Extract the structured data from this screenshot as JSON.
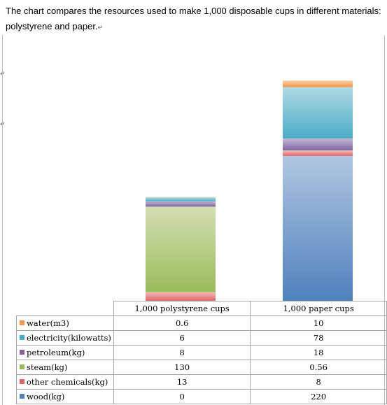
{
  "intro_text": "The chart compares the resources used to make 1,000 disposable cups in different materials: polystyrene and paper.",
  "para_mark": "↵",
  "chart_data": {
    "type": "bar",
    "stacked": true,
    "categories": [
      "1,000 polystyrene cups",
      "1,000 paper cups"
    ],
    "series": [
      {
        "name": "wood(kg)",
        "values": [
          0,
          220
        ],
        "color": "#4f81bd"
      },
      {
        "name": "other chemicals(kg)",
        "values": [
          13,
          8
        ],
        "color": "#e06666"
      },
      {
        "name": "steam(kg)",
        "values": [
          130,
          0.56
        ],
        "color": "#9bbb59"
      },
      {
        "name": "petroleum(kg)",
        "values": [
          8,
          18
        ],
        "color": "#8064a2"
      },
      {
        "name": "electricity(kilowatts)",
        "values": [
          6,
          78
        ],
        "color": "#4bacc6"
      },
      {
        "name": "water(m3)",
        "values": [
          0.6,
          10
        ],
        "color": "#f79646"
      }
    ],
    "table_row_order": [
      "water(m3)",
      "electricity(kilowatts)",
      "petroleum(kg)",
      "steam(kg)",
      "other chemicals(kg)",
      "wood(kg)"
    ],
    "table_values": [
      [
        "0.6",
        "10"
      ],
      [
        "6",
        "78"
      ],
      [
        "8",
        "18"
      ],
      [
        "130",
        "0.56"
      ],
      [
        "13",
        "8"
      ],
      [
        "0",
        "220"
      ]
    ],
    "ylim": [
      0,
      340
    ],
    "grid": false,
    "legend_placement": "data table below chart"
  }
}
